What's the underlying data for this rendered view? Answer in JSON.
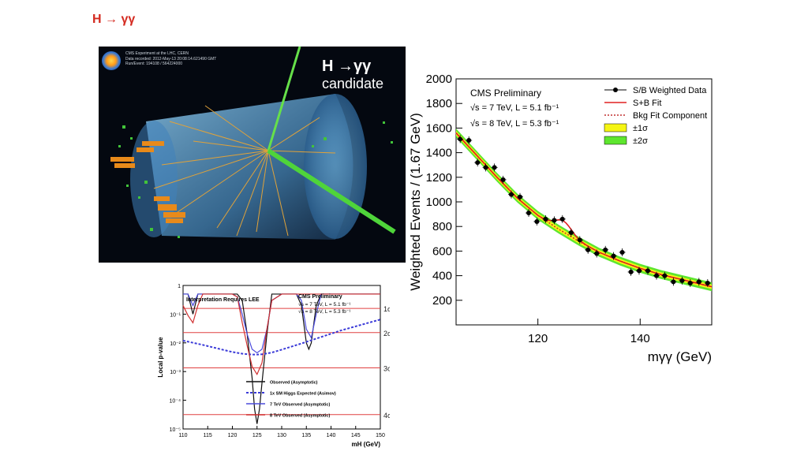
{
  "slide": {
    "title": "H → γγ"
  },
  "event_display": {
    "title_line1": "H →γγ",
    "title_line2": "candidate",
    "info": [
      "CMS Experiment at the LHC, CERN",
      "Data recorded: 2012-May-13 20:08:14.621490 GMT",
      "Run/Event: 194108 / 564224000"
    ],
    "colors": {
      "background": "#040810",
      "barrel": "#5aa7d8",
      "tracks": "#e0a23a",
      "photons": "#66e04a",
      "hcal": "#e88a1a",
      "hits": "#42c43a"
    }
  },
  "chart_data": [
    {
      "id": "local-pvalue",
      "type": "line",
      "annotation": "Interpretation Requires LEE",
      "legend_title": "CMS Preliminary",
      "energy_lines": [
        "√s = 7 TeV, L = 5.1 fb⁻¹",
        "√s = 8 TeV, L = 5.3 fb⁻¹"
      ],
      "ylabel": "Local p-value",
      "xlabel": "mH (GeV)",
      "xlim": [
        110,
        150
      ],
      "ylim_log10": [
        -5,
        0
      ],
      "x_ticks": [
        110,
        115,
        120,
        125,
        130,
        135,
        140,
        145,
        150
      ],
      "y_ticks": [
        {
          "exp": 0,
          "label": "1"
        },
        {
          "exp": -1,
          "label": "10⁻¹"
        },
        {
          "exp": -2,
          "label": "10⁻²"
        },
        {
          "exp": -3,
          "label": "10⁻³"
        },
        {
          "exp": -4,
          "label": "10⁻⁴"
        },
        {
          "exp": -5,
          "label": "10⁻⁵"
        }
      ],
      "sigma_lines": [
        {
          "label": "1σ",
          "p": 0.159
        },
        {
          "label": "2σ",
          "p": 0.0228
        },
        {
          "label": "3σ",
          "p": 0.00135
        },
        {
          "label": "4σ",
          "p": 3.17e-05
        }
      ],
      "series": [
        {
          "name": "Observed (Asymptotic)",
          "color": "#111111",
          "x": [
            110,
            111,
            112,
            113,
            114,
            115,
            116,
            120,
            121,
            122,
            123,
            124,
            124.5,
            125,
            125.5,
            126,
            127,
            128,
            130,
            133,
            134,
            135,
            135.5,
            136,
            137,
            138,
            140,
            145,
            150
          ],
          "p": [
            0.5,
            0.5,
            0.1,
            0.5,
            0.5,
            0.5,
            0.5,
            0.5,
            0.5,
            0.3,
            0.02,
            0.0006,
            5e-05,
            1.5e-05,
            5e-05,
            0.0004,
            0.02,
            0.5,
            0.5,
            0.5,
            0.2,
            0.01,
            0.006,
            0.01,
            0.2,
            0.5,
            0.5,
            0.5,
            0.5
          ]
        },
        {
          "name": "1x SM Higgs Expected (Asimov)",
          "color": "#3a3ad8",
          "x": [
            110,
            114,
            118,
            120,
            122,
            124,
            125,
            126,
            128,
            130,
            134,
            138,
            142,
            146,
            150
          ],
          "p": [
            0.012,
            0.0085,
            0.0058,
            0.0048,
            0.0042,
            0.0039,
            0.0039,
            0.004,
            0.0046,
            0.0058,
            0.0095,
            0.016,
            0.027,
            0.042,
            0.065
          ]
        },
        {
          "name": "7 TeV Observed (Asymptotic)",
          "color": "#4a4adc",
          "x": [
            110,
            111,
            112,
            113,
            114,
            116,
            120,
            121,
            122,
            123,
            124,
            125,
            126,
            127,
            128,
            130,
            133,
            134,
            135,
            136,
            137,
            138,
            140,
            145,
            150
          ],
          "p": [
            0.5,
            0.5,
            0.2,
            0.5,
            0.5,
            0.5,
            0.5,
            0.4,
            0.1,
            0.02,
            0.006,
            0.0045,
            0.006,
            0.03,
            0.3,
            0.5,
            0.5,
            0.3,
            0.03,
            0.015,
            0.1,
            0.5,
            0.5,
            0.5,
            0.5
          ]
        },
        {
          "name": "8 TeV Observed (Asymptotic)",
          "color": "#d03030",
          "x": [
            110,
            111,
            112,
            113,
            114,
            116,
            118,
            120,
            121,
            122,
            123,
            124,
            125,
            126,
            127,
            128,
            130,
            132,
            134,
            136,
            138,
            140,
            145,
            150
          ],
          "p": [
            0.2,
            0.09,
            0.05,
            0.2,
            0.5,
            0.5,
            0.5,
            0.5,
            0.4,
            0.05,
            0.008,
            0.0015,
            0.0008,
            0.002,
            0.03,
            0.3,
            0.5,
            0.5,
            0.5,
            0.5,
            0.5,
            0.5,
            0.5,
            0.5
          ]
        }
      ]
    },
    {
      "id": "mass-spectrum",
      "type": "scatter",
      "legend_title": "CMS Preliminary",
      "energy_lines": [
        "√s = 7 TeV, L = 5.1 fb⁻¹",
        "√s = 8 TeV, L = 5.3 fb⁻¹"
      ],
      "ylabel": "Weighted Events / (1.67 GeV)",
      "xlabel": "mγγ (GeV)",
      "xlim": [
        104,
        154
      ],
      "ylim": [
        0,
        2000
      ],
      "x_ticks": [
        120,
        140
      ],
      "y_ticks": [
        200,
        400,
        600,
        800,
        1000,
        1200,
        1400,
        1600,
        1800,
        2000
      ],
      "legend": [
        {
          "label": "S/B Weighted Data",
          "kind": "marker"
        },
        {
          "label": "S+B Fit",
          "kind": "line",
          "color": "#e02020"
        },
        {
          "label": "Bkg Fit Component",
          "kind": "dotted",
          "color": "#c03030"
        },
        {
          "label": "±1σ",
          "kind": "box",
          "color": "#f5f514"
        },
        {
          "label": "±2σ",
          "kind": "box",
          "color": "#5ee62e"
        }
      ],
      "points": [
        {
          "x": 104.8,
          "y": 1510
        },
        {
          "x": 106.5,
          "y": 1500
        },
        {
          "x": 108.2,
          "y": 1320
        },
        {
          "x": 109.8,
          "y": 1280
        },
        {
          "x": 111.5,
          "y": 1280
        },
        {
          "x": 113.2,
          "y": 1180
        },
        {
          "x": 114.8,
          "y": 1060
        },
        {
          "x": 116.5,
          "y": 1040
        },
        {
          "x": 118.2,
          "y": 910
        },
        {
          "x": 119.8,
          "y": 840
        },
        {
          "x": 121.5,
          "y": 860
        },
        {
          "x": 123.2,
          "y": 850
        },
        {
          "x": 124.8,
          "y": 860
        },
        {
          "x": 126.5,
          "y": 750
        },
        {
          "x": 128.2,
          "y": 690
        },
        {
          "x": 129.8,
          "y": 610
        },
        {
          "x": 131.5,
          "y": 580
        },
        {
          "x": 133.2,
          "y": 610
        },
        {
          "x": 134.8,
          "y": 560
        },
        {
          "x": 136.5,
          "y": 590
        },
        {
          "x": 138.2,
          "y": 430
        },
        {
          "x": 139.8,
          "y": 440
        },
        {
          "x": 141.5,
          "y": 440
        },
        {
          "x": 143.2,
          "y": 400
        },
        {
          "x": 144.8,
          "y": 400
        },
        {
          "x": 146.5,
          "y": 350
        },
        {
          "x": 148.2,
          "y": 360
        },
        {
          "x": 149.8,
          "y": 340
        },
        {
          "x": 151.5,
          "y": 350
        },
        {
          "x": 153.2,
          "y": 340
        }
      ],
      "bkg_fit": {
        "x": [
          104,
          108,
          112,
          116,
          120,
          124,
          128,
          132,
          136,
          140,
          144,
          148,
          152,
          154
        ],
        "y": [
          1560,
          1380,
          1200,
          1030,
          890,
          780,
          680,
          590,
          520,
          460,
          410,
          370,
          330,
          310
        ]
      },
      "signal_peak": {
        "mass": 125,
        "height": 90,
        "width": 1.6
      }
    }
  ]
}
